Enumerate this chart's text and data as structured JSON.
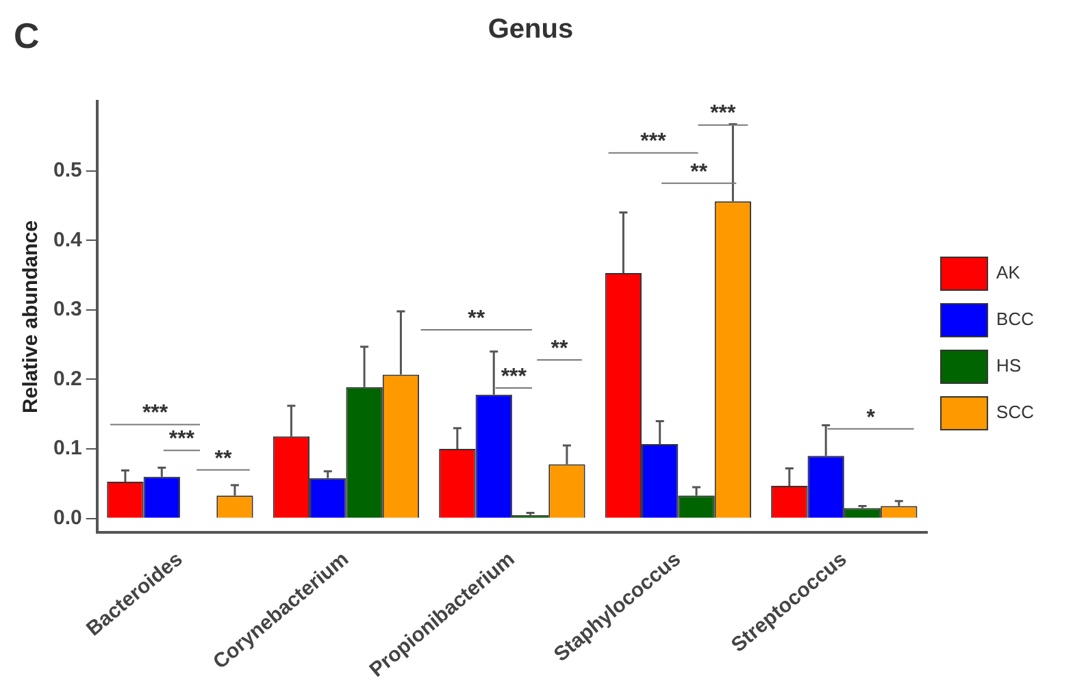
{
  "chart_data": {
    "type": "bar",
    "title": "Genus",
    "ylabel": "Relative abundance",
    "categories": [
      "Bacteroides",
      "Corynebacterium",
      "Propionibacterium",
      "Staphylococcus",
      "Streptococcus"
    ],
    "series": [
      {
        "name": "AK",
        "color": "#ff0000",
        "values": [
          0.053,
          0.118,
          0.1,
          0.353,
          0.047
        ],
        "errors": [
          [
            0.053,
            0.069
          ],
          [
            0.118,
            0.162
          ],
          [
            0.1,
            0.13
          ],
          [
            0.353,
            0.44
          ],
          [
            0.047,
            0.072
          ]
        ]
      },
      {
        "name": "BCC",
        "color": "#0000ff",
        "values": [
          0.06,
          0.058,
          0.178,
          0.107,
          0.09
        ],
        "errors": [
          [
            0.06,
            0.073
          ],
          [
            0.058,
            0.068
          ],
          [
            0.178,
            0.24
          ],
          [
            0.107,
            0.14
          ],
          [
            0.09,
            0.134
          ]
        ]
      },
      {
        "name": "HS",
        "color": "#006400",
        "values": [
          null,
          0.189,
          0.005,
          0.033,
          0.015
        ],
        "errors": [
          null,
          [
            0.189,
            0.247
          ],
          [
            0.005,
            0.008
          ],
          [
            0.033,
            0.045
          ],
          [
            0.015,
            0.018
          ]
        ]
      },
      {
        "name": "SCC",
        "color": "#ff9900",
        "values": [
          0.033,
          0.207,
          0.078,
          0.456,
          0.018
        ],
        "errors": [
          [
            0.033,
            0.048
          ],
          [
            0.207,
            0.298
          ],
          [
            0.078,
            0.105
          ],
          [
            0.456,
            0.567
          ],
          [
            0.018,
            0.025
          ]
        ]
      }
    ],
    "ylim": [
      -0.02,
      0.6
    ],
    "yticks": [
      {
        "value": 0,
        "label": "0.0"
      },
      0.1,
      0.2,
      0.3,
      0.4,
      0.5
    ],
    "grid": false,
    "legend": "right",
    "annotations": [
      "C",
      "***",
      "***",
      "**",
      "**",
      "**",
      "***",
      "***",
      "***",
      "**",
      "*"
    ]
  }
}
